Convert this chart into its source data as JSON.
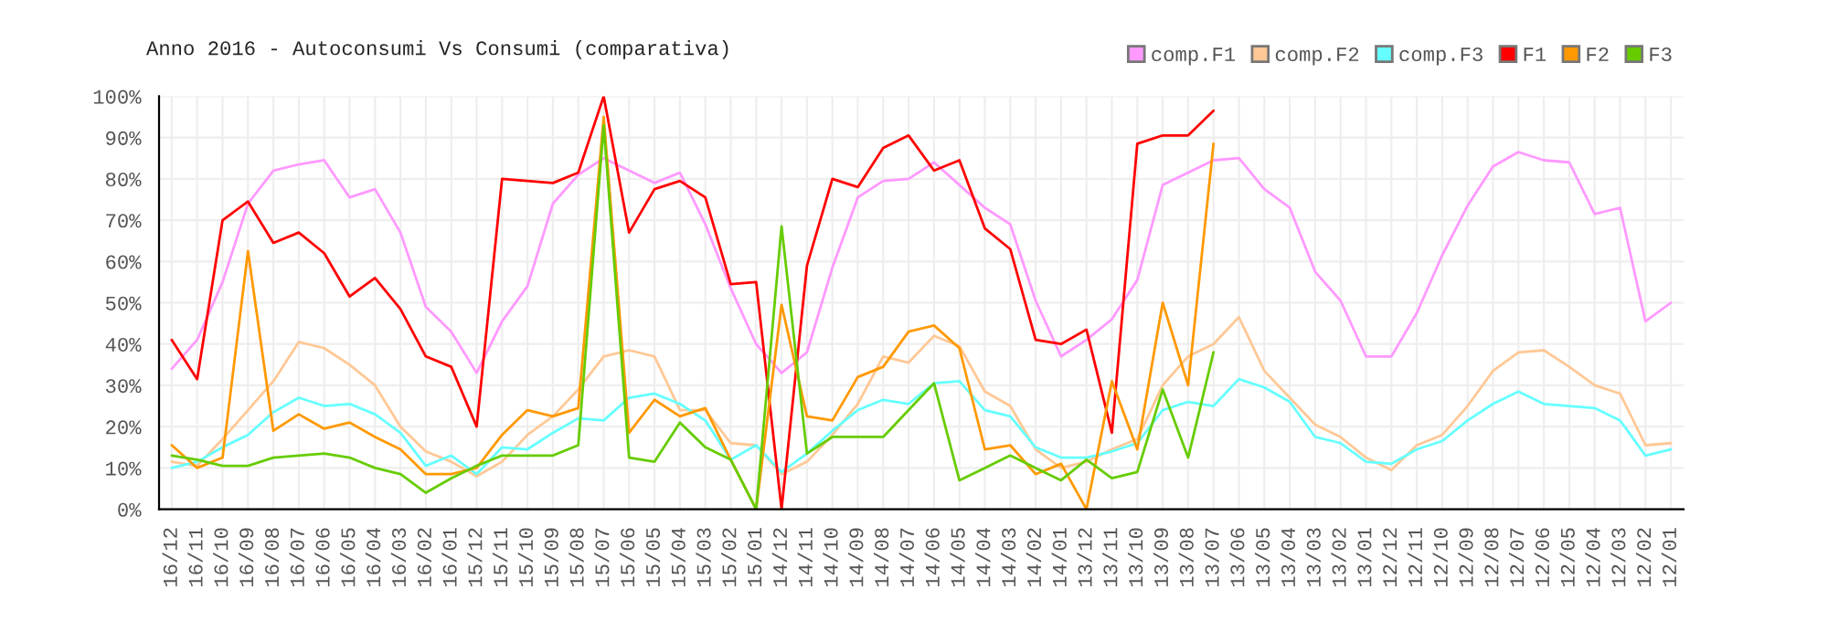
{
  "chart_data": {
    "type": "line",
    "title": "Anno 2016 - Autoconsumi Vs Consumi (comparativa)",
    "categories": [
      "16/12",
      "16/11",
      "16/10",
      "16/09",
      "16/08",
      "16/07",
      "16/06",
      "16/05",
      "16/04",
      "16/03",
      "16/02",
      "16/01",
      "15/12",
      "15/11",
      "15/10",
      "15/09",
      "15/08",
      "15/07",
      "15/06",
      "15/05",
      "15/04",
      "15/03",
      "15/02",
      "15/01",
      "14/12",
      "14/11",
      "14/10",
      "14/09",
      "14/08",
      "14/07",
      "14/06",
      "14/05",
      "14/04",
      "14/03",
      "14/02",
      "14/01",
      "13/12",
      "13/11",
      "13/10",
      "13/09",
      "13/08",
      "13/07",
      "13/06",
      "13/05",
      "13/04",
      "13/03",
      "13/02",
      "13/01",
      "12/12",
      "12/11",
      "12/10",
      "12/09",
      "12/08",
      "12/07",
      "12/06",
      "12/05",
      "12/04",
      "12/03",
      "12/02",
      "12/01"
    ],
    "series": [
      {
        "name": "comp.F1",
        "color": "#ff99ff",
        "values": [
          34,
          41,
          55,
          74,
          82,
          83.5,
          84.5,
          75.5,
          77.5,
          67,
          49,
          43,
          33,
          45.5,
          54,
          74,
          81,
          85,
          82,
          79,
          81.5,
          69,
          53.5,
          40,
          33,
          38,
          58.5,
          75.5,
          79.5,
          80,
          84,
          78.5,
          73,
          69,
          50.5,
          37,
          41,
          46,
          55.5,
          78.5,
          81.5,
          84.5,
          85,
          77.5,
          73,
          57.5,
          50.5,
          37,
          37,
          47.5,
          61.5,
          73.5,
          83,
          86.5,
          84.5,
          84,
          71.5,
          73,
          45.5,
          50
        ]
      },
      {
        "name": "comp.F2",
        "color": "#ffc896",
        "values": [
          11.5,
          10.5,
          17,
          24,
          31,
          40.5,
          39,
          35,
          30,
          20,
          14,
          11.5,
          8,
          11.5,
          18,
          22.5,
          29,
          37,
          38.5,
          37,
          24,
          24,
          16,
          15.5,
          8.5,
          11.5,
          18,
          25.5,
          37,
          35.5,
          42,
          39.5,
          28.5,
          25,
          14.5,
          10,
          11.5,
          14.5,
          17,
          30,
          37,
          40,
          46.5,
          33.5,
          27,
          20.5,
          17.5,
          12.5,
          9.5,
          15.5,
          18,
          25,
          33.5,
          38,
          38.5,
          34.5,
          30,
          28,
          15.5,
          16
        ]
      },
      {
        "name": "comp.F3",
        "color": "#66ffff",
        "values": [
          10,
          11.5,
          15,
          18,
          23.5,
          27,
          25,
          25.5,
          23,
          18.5,
          10.5,
          13,
          8.5,
          15,
          14.5,
          18.5,
          22,
          21.5,
          27,
          28,
          25.5,
          21.5,
          12,
          15.5,
          9,
          13.5,
          19,
          24,
          26.5,
          25.5,
          30.5,
          31,
          24,
          22.5,
          15,
          12.5,
          12.5,
          14,
          16,
          24,
          26,
          25,
          31.5,
          29.5,
          26,
          17.5,
          16,
          11.5,
          11,
          14.5,
          16.5,
          21.5,
          25.5,
          28.5,
          25.5,
          25,
          24.5,
          21.5,
          13,
          14.5
        ]
      },
      {
        "name": "F1",
        "color": "#ff0000",
        "values": [
          41,
          31.5,
          70,
          74.5,
          64.5,
          67,
          62,
          51.5,
          56,
          48.5,
          37,
          34.5,
          20,
          80,
          79.5,
          79,
          81.5,
          100,
          67,
          77.5,
          79.5,
          75.5,
          54.5,
          55,
          0,
          59,
          80,
          78,
          87.5,
          90.5,
          82,
          84.5,
          68,
          63,
          41,
          40,
          43.5,
          18.5,
          88.5,
          90.5,
          90.5,
          96.5,
          null,
          null,
          null,
          null,
          null,
          null,
          null,
          null,
          null,
          null,
          null,
          null,
          null,
          null,
          null,
          null,
          null,
          null
        ]
      },
      {
        "name": "F2",
        "color": "#ff9900",
        "values": [
          15.5,
          10,
          12.5,
          62.5,
          19,
          23,
          19.5,
          21,
          17.5,
          14.5,
          8.5,
          8.5,
          10,
          18,
          24,
          22.5,
          24.5,
          95,
          18.5,
          26.5,
          22.5,
          24.5,
          12,
          0,
          49.5,
          22.5,
          21.5,
          32,
          34.5,
          43,
          44.5,
          39,
          14.5,
          15.5,
          8.5,
          11,
          0,
          31,
          14.5,
          50,
          30,
          88.5,
          null,
          null,
          null,
          null,
          null,
          null,
          null,
          null,
          null,
          null,
          null,
          null,
          null,
          null,
          null,
          null,
          null,
          null
        ]
      },
      {
        "name": "F3",
        "color": "#66cc00",
        "values": [
          13,
          12,
          10.5,
          10.5,
          12.5,
          13,
          13.5,
          12.5,
          10,
          8.5,
          4,
          7.5,
          10.5,
          13,
          13,
          13,
          15.5,
          93,
          12.5,
          11.5,
          21,
          15,
          12,
          0,
          68.5,
          13.5,
          17.5,
          17.5,
          17.5,
          24,
          30.5,
          7,
          10,
          13,
          10,
          7,
          12,
          7.5,
          9,
          29,
          12.5,
          38,
          null,
          null,
          null,
          null,
          null,
          null,
          null,
          null,
          null,
          null,
          null,
          null,
          null,
          null,
          null,
          null,
          null,
          null
        ]
      }
    ],
    "ylim": [
      0,
      100
    ],
    "yticks": [
      {
        "value": 0,
        "label": "0%"
      },
      {
        "value": 10,
        "label": "10%"
      },
      {
        "value": 20,
        "label": "20%"
      },
      {
        "value": 30,
        "label": "30%"
      },
      {
        "value": 40,
        "label": "40%"
      },
      {
        "value": 50,
        "label": "50%"
      },
      {
        "value": 60,
        "label": "60%"
      },
      {
        "value": 70,
        "label": "70%"
      },
      {
        "value": 80,
        "label": "80%"
      },
      {
        "value": 90,
        "label": "90%"
      },
      {
        "value": 100,
        "label": "100%"
      }
    ],
    "grid": true,
    "legend": "top right",
    "marker": "none",
    "line_style": "solid"
  }
}
